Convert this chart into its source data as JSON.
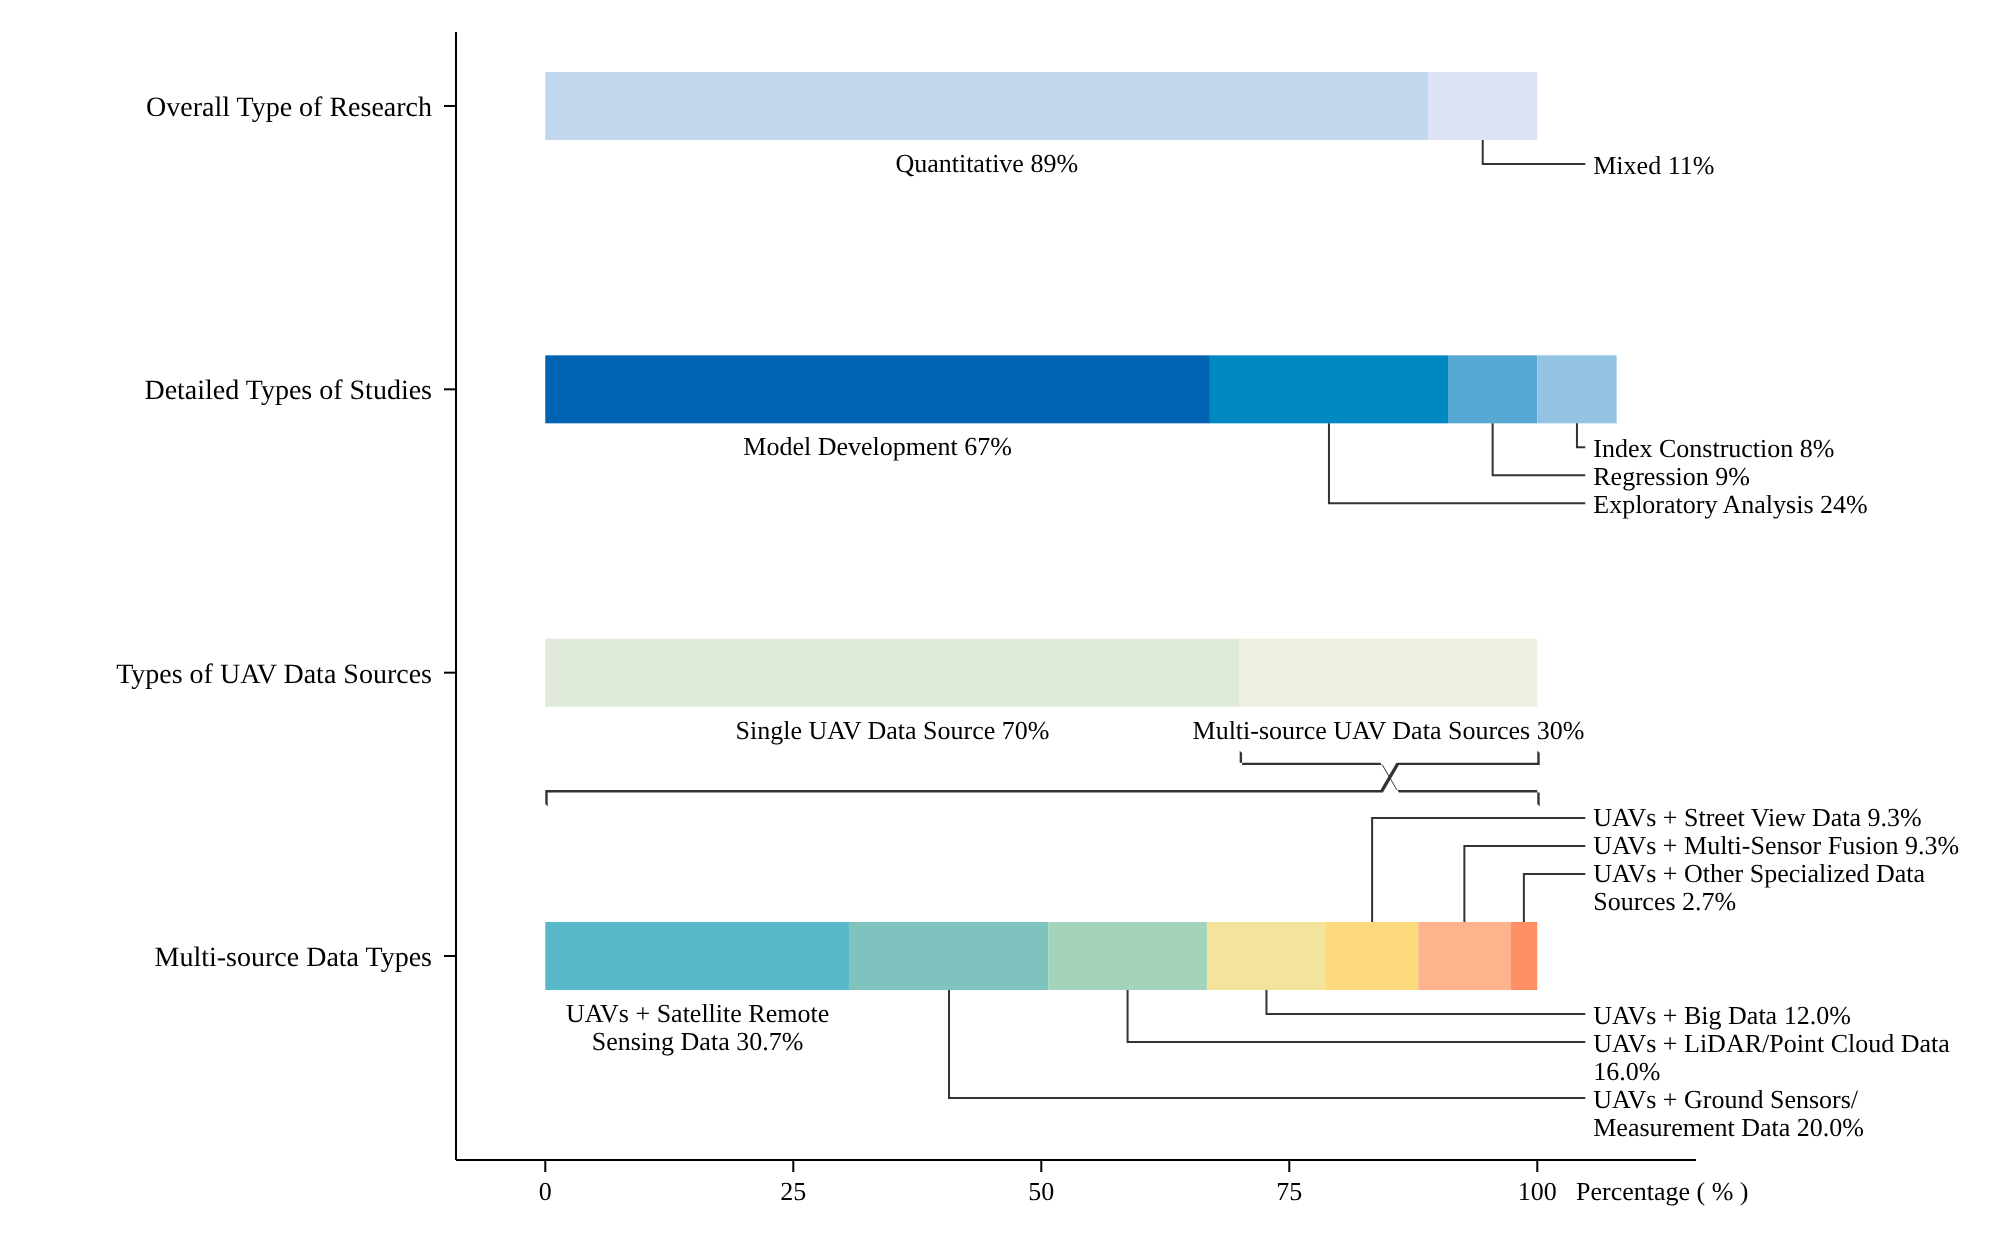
{
  "chart_data": {
    "type": "bar",
    "orientation": "horizontal",
    "stacked": true,
    "xlabel": "Percentage ( % )",
    "categories": [
      "Overall Type of Research",
      "Detailed Types of Studies",
      "Types of UAV Data Sources",
      "Multi-source Data Types"
    ],
    "xlim": [
      -9,
      116
    ],
    "xticks": [
      0,
      25,
      50,
      75,
      100
    ],
    "grid": false,
    "legend": false,
    "series": [
      {
        "name": "Quantitative",
        "color": "#c0d7ee",
        "values": [
          89,
          null,
          null,
          null
        ],
        "value_labels": [
          "89%",
          null,
          null,
          null
        ]
      },
      {
        "name": "Mixed",
        "color": "#dde3f4",
        "values": [
          11,
          null,
          null,
          null
        ],
        "value_labels": [
          "11%",
          null,
          null,
          null
        ]
      },
      {
        "name": "Model Development",
        "color": "#0063b1",
        "values": [
          null,
          67,
          null,
          null
        ],
        "value_labels": [
          null,
          "67%",
          null,
          null
        ]
      },
      {
        "name": "Exploratory Analysis",
        "color": "#0088c0",
        "values": [
          null,
          24,
          null,
          null
        ],
        "value_labels": [
          null,
          "24%",
          null,
          null
        ]
      },
      {
        "name": "Regression",
        "color": "#58a8d4",
        "values": [
          null,
          9,
          null,
          null
        ],
        "value_labels": [
          null,
          "9%",
          null,
          null
        ]
      },
      {
        "name": "Index Construction",
        "color": "#93c3e3",
        "values": [
          null,
          8,
          null,
          null
        ],
        "value_labels": [
          null,
          "8%",
          null,
          null
        ]
      },
      {
        "name": "Single UAV Data Source",
        "color": "#dfeadb",
        "values": [
          null,
          null,
          70,
          null
        ],
        "value_labels": [
          null,
          null,
          "70%",
          null
        ]
      },
      {
        "name": "Multi-source UAV Data Sources",
        "color": "#edf1df",
        "values": [
          null,
          null,
          30,
          null
        ],
        "value_labels": [
          null,
          null,
          "30%",
          null
        ]
      },
      {
        "name": "UAVs + Satellite Remote Sensing Data",
        "color": "#5ab9c8",
        "values": [
          null,
          null,
          null,
          30.7
        ],
        "value_labels": [
          null,
          null,
          null,
          "30.7%"
        ]
      },
      {
        "name": "UAVs + Ground Sensors/ Measurement Data",
        "color": "#7ec3be",
        "values": [
          null,
          null,
          null,
          20.0
        ],
        "value_labels": [
          null,
          null,
          null,
          "20.0%"
        ]
      },
      {
        "name": "UAVs + LiDAR/Point Cloud Data",
        "color": "#a3d4bb",
        "values": [
          null,
          null,
          null,
          16.0
        ],
        "value_labels": [
          null,
          null,
          null,
          "16.0%"
        ]
      },
      {
        "name": "UAVs + Big Data",
        "color": "#f3e39c",
        "values": [
          null,
          null,
          null,
          12.0
        ],
        "value_labels": [
          null,
          null,
          null,
          "12.0%"
        ]
      },
      {
        "name": "UAVs + Street View Data",
        "color": "#fcd97d",
        "values": [
          null,
          null,
          null,
          9.3
        ],
        "value_labels": [
          null,
          null,
          null,
          "9.3%"
        ]
      },
      {
        "name": "UAVs + Multi-Sensor Fusion",
        "color": "#fdb48c",
        "values": [
          null,
          null,
          null,
          9.3
        ],
        "value_labels": [
          null,
          null,
          null,
          "9.3%"
        ]
      },
      {
        "name": "UAVs + Other Specialized Data Sources",
        "color": "#fd8f62",
        "values": [
          null,
          null,
          null,
          2.7
        ],
        "value_labels": [
          null,
          null,
          null,
          "2.7%"
        ]
      }
    ]
  }
}
